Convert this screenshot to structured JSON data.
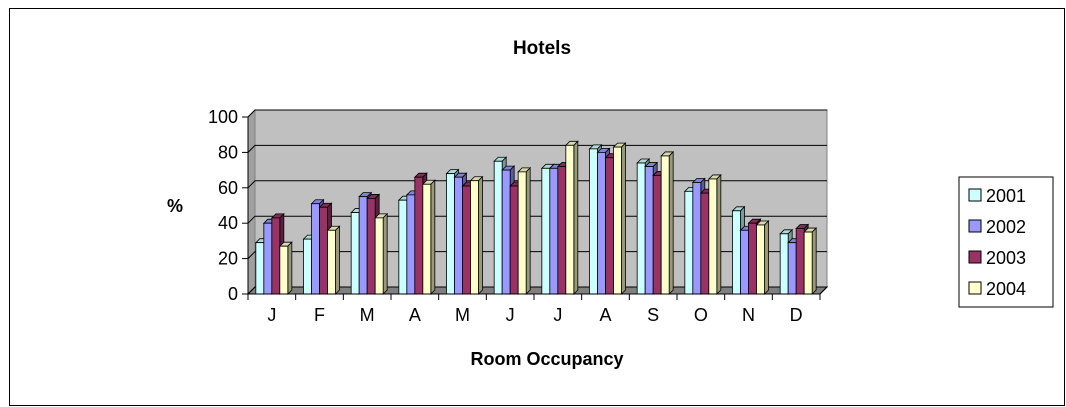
{
  "chart_data": {
    "type": "bar",
    "style": "3d-clustered-column",
    "title": "Hotels",
    "xlabel": "Room Occupancy",
    "ylabel": "%",
    "categories": [
      "J",
      "F",
      "M",
      "A",
      "M",
      "J",
      "J",
      "A",
      "S",
      "O",
      "N",
      "D"
    ],
    "ylim": [
      0,
      100
    ],
    "yticks": [
      "0",
      "20",
      "40",
      "60",
      "80",
      "100"
    ],
    "grid": true,
    "legend_position": "right",
    "plot_background": "#c0c0c0",
    "series": [
      {
        "name": "2001",
        "color": "#ccffff",
        "values": [
          29,
          31,
          46,
          53,
          68,
          75,
          71,
          82,
          74,
          58,
          47,
          34
        ]
      },
      {
        "name": "2002",
        "color": "#9999ff",
        "values": [
          40,
          51,
          55,
          56,
          66,
          70,
          71,
          80,
          72,
          63,
          36,
          29
        ]
      },
      {
        "name": "2003",
        "color": "#993366",
        "values": [
          43,
          49,
          54,
          66,
          61,
          61,
          72,
          77,
          67,
          57,
          40,
          37
        ]
      },
      {
        "name": "2004",
        "color": "#ffffcc",
        "values": [
          27,
          36,
          43,
          62,
          64,
          69,
          84,
          83,
          78,
          65,
          39,
          35
        ]
      }
    ]
  }
}
